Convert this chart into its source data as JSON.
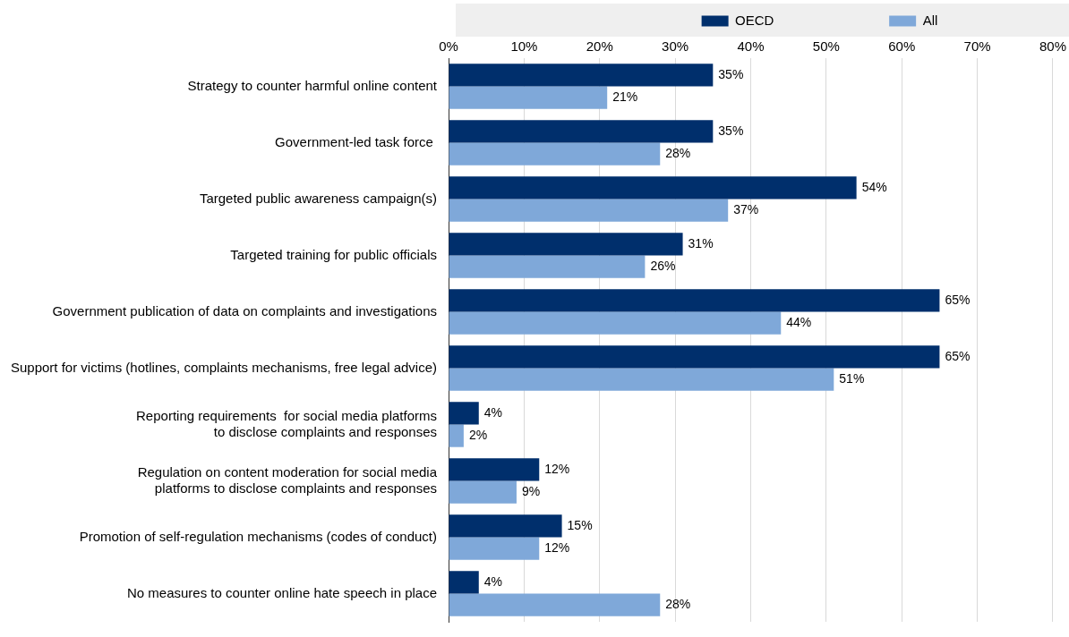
{
  "chart_data": {
    "type": "bar",
    "orientation": "horizontal",
    "categories": [
      "Strategy to counter harmful online content",
      "Government-led task force ",
      "Targeted public awareness campaign(s)",
      "Targeted training for public officials",
      "Government publication of data on complaints and investigations",
      "Support for victims (hotlines, complaints mechanisms, free legal advice)",
      "Reporting requirements  for social media platforms\nto disclose complaints and responses",
      "Regulation on content moderation for social media\nplatforms to disclose complaints and responses",
      "Promotion of self-regulation mechanisms (codes of conduct)",
      "No measures to counter online hate speech in place"
    ],
    "series": [
      {
        "name": "OECD",
        "color": "#002f6c",
        "values": [
          35,
          35,
          54,
          31,
          65,
          65,
          4,
          12,
          15,
          4
        ],
        "value_labels": [
          "35%",
          "35%",
          "54%",
          "31%",
          "65%",
          "65%",
          "4%",
          "12%",
          "15%",
          "4%"
        ]
      },
      {
        "name": "All",
        "color": "#7fa8d9",
        "values": [
          21,
          28,
          37,
          26,
          44,
          51,
          2,
          9,
          12,
          28
        ],
        "value_labels": [
          "21%",
          "28%",
          "37%",
          "26%",
          "44%",
          "51%",
          "2%",
          "9%",
          "12%",
          "28%"
        ]
      }
    ],
    "xlim": [
      0,
      80
    ],
    "xticks": [
      {
        "value": 0,
        "label": "0%"
      },
      {
        "value": 10,
        "label": "10%"
      },
      {
        "value": 20,
        "label": "20%"
      },
      {
        "value": 30,
        "label": "30%"
      },
      {
        "value": 40,
        "label": "40%"
      },
      {
        "value": 50,
        "label": "50%"
      },
      {
        "value": 60,
        "label": "60%"
      },
      {
        "value": 70,
        "label": "70%"
      },
      {
        "value": 80,
        "label": "80%"
      }
    ],
    "grid": "x",
    "legend": "top"
  }
}
